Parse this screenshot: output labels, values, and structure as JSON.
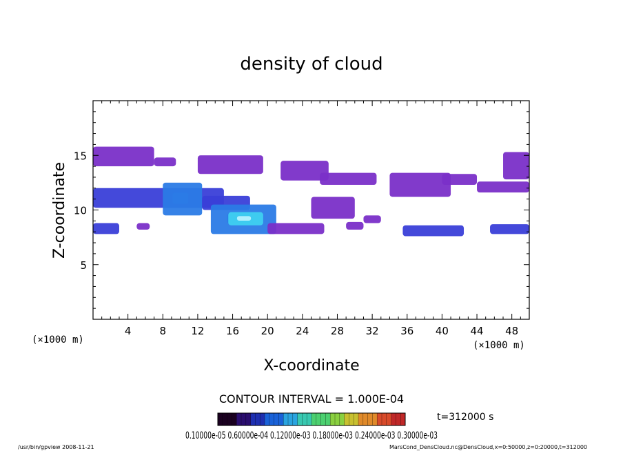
{
  "chart_data": {
    "type": "heatmap",
    "title": "density of cloud",
    "xlabel": "X-coordinate",
    "ylabel": "Z-coordinate",
    "x_unit_left": "(×1000 m)",
    "x_unit_right": "(×1000 m)",
    "xlim": [
      0,
      50
    ],
    "ylim": [
      0,
      20
    ],
    "x_ticks": [
      4,
      8,
      12,
      16,
      20,
      24,
      28,
      32,
      36,
      40,
      44,
      48
    ],
    "y_ticks": [
      5,
      10,
      15
    ],
    "contour_interval": "CONTOUR INTERVAL = 1.000E-04",
    "time_label": "t=312000 s",
    "colorbar_labels": "0.10000e-05 0.60000e-04 0.12000e-03 0.18000e-03 0.24000e-03 0.30000e-03",
    "footer_left": "/usr/bin/gpview   2008-11-21",
    "footer_right": "MarsCond_DensCloud.nc@DensCloud,x=0:50000,z=0:20000,t=312000",
    "cloud_patches": [
      {
        "x": [
          0.0,
          7.0
        ],
        "z": [
          14.0,
          15.8
        ],
        "level": 0.2
      },
      {
        "x": [
          7.0,
          9.5
        ],
        "z": [
          14.0,
          14.8
        ],
        "level": 0.2
      },
      {
        "x": [
          12.0,
          19.5
        ],
        "z": [
          13.3,
          15.0
        ],
        "level": 0.2
      },
      {
        "x": [
          21.5,
          27.0
        ],
        "z": [
          12.7,
          14.5
        ],
        "level": 0.25
      },
      {
        "x": [
          26.0,
          32.5
        ],
        "z": [
          12.3,
          13.4
        ],
        "level": 0.2
      },
      {
        "x": [
          34.0,
          41.0
        ],
        "z": [
          11.2,
          13.4
        ],
        "level": 0.25
      },
      {
        "x": [
          40.0,
          44.0
        ],
        "z": [
          12.3,
          13.3
        ],
        "level": 0.2
      },
      {
        "x": [
          44.0,
          50.0
        ],
        "z": [
          11.6,
          12.6
        ],
        "level": 0.2
      },
      {
        "x": [
          47.0,
          50.0
        ],
        "z": [
          12.8,
          15.3
        ],
        "level": 0.2
      },
      {
        "x": [
          0.0,
          15.0
        ],
        "z": [
          10.2,
          12.0
        ],
        "level": 0.3
      },
      {
        "x": [
          8.0,
          12.5
        ],
        "z": [
          9.5,
          12.5
        ],
        "level": 0.45
      },
      {
        "x": [
          12.5,
          18.0
        ],
        "z": [
          10.0,
          11.3
        ],
        "level": 0.35
      },
      {
        "x": [
          25.0,
          30.0
        ],
        "z": [
          9.2,
          11.2
        ],
        "level": 0.25
      },
      {
        "x": [
          13.5,
          21.0
        ],
        "z": [
          7.8,
          10.5
        ],
        "level": 0.4
      },
      {
        "x": [
          15.5,
          19.5
        ],
        "z": [
          8.6,
          9.8
        ],
        "level": 0.7
      },
      {
        "x": [
          20.0,
          26.5
        ],
        "z": [
          7.8,
          8.8
        ],
        "level": 0.25
      },
      {
        "x": [
          0.0,
          3.0
        ],
        "z": [
          7.8,
          8.8
        ],
        "level": 0.3
      },
      {
        "x": [
          35.5,
          42.5
        ],
        "z": [
          7.6,
          8.6
        ],
        "level": 0.3
      },
      {
        "x": [
          45.5,
          50.0
        ],
        "z": [
          7.8,
          8.7
        ],
        "level": 0.35
      },
      {
        "x": [
          5.0,
          6.5
        ],
        "z": [
          8.2,
          8.8
        ],
        "level": 0.2
      },
      {
        "x": [
          29.0,
          31.0
        ],
        "z": [
          8.2,
          8.9
        ],
        "level": 0.2
      },
      {
        "x": [
          31.0,
          33.0
        ],
        "z": [
          8.8,
          9.5
        ],
        "level": 0.2
      }
    ]
  },
  "colors": {
    "low": "#7a2fc8",
    "mid": "#3a3fd8",
    "high": "#2b7be6",
    "peak": "#3fd0f0"
  }
}
